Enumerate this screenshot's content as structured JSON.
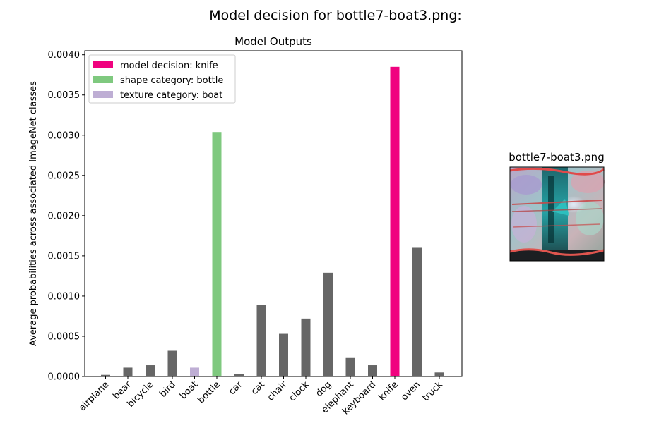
{
  "figure": {
    "suptitle": "Model decision for bottle7-boat3.png:"
  },
  "chart_data": {
    "type": "bar",
    "title": "Model Outputs",
    "xlabel": "",
    "ylabel": "Average probabilities across associated ImageNet classes",
    "ylim": [
      0,
      0.00405
    ],
    "yticks": [
      0.0,
      0.0005,
      0.001,
      0.0015,
      0.002,
      0.0025,
      0.003,
      0.0035,
      0.004
    ],
    "ytick_labels": [
      "0.0000",
      "0.0005",
      "0.0010",
      "0.0015",
      "0.0020",
      "0.0025",
      "0.0030",
      "0.0035",
      "0.0040"
    ],
    "categories": [
      "airplane",
      "bear",
      "bicycle",
      "bird",
      "boat",
      "bottle",
      "car",
      "cat",
      "chair",
      "clock",
      "dog",
      "elephant",
      "keyboard",
      "knife",
      "oven",
      "truck"
    ],
    "values": [
      2e-05,
      0.00011,
      0.00014,
      0.00032,
      0.00011,
      0.00304,
      3e-05,
      0.00089,
      0.00053,
      0.00072,
      0.00129,
      0.00023,
      0.00014,
      0.00385,
      0.0016,
      5e-05
    ],
    "bar_colors": [
      "#666666",
      "#666666",
      "#666666",
      "#666666",
      "#beaed4",
      "#7fc97f",
      "#666666",
      "#666666",
      "#666666",
      "#666666",
      "#666666",
      "#666666",
      "#666666",
      "#f0027f",
      "#666666",
      "#666666"
    ],
    "grid": false,
    "legend_position": "top-left",
    "legend": [
      {
        "label": "model decision: knife",
        "color": "#f0027f"
      },
      {
        "label": "shape category: bottle",
        "color": "#7fc97f"
      },
      {
        "label": "texture category: boat",
        "color": "#beaed4"
      }
    ]
  },
  "thumbnail": {
    "title": "bottle7-boat3.png"
  }
}
